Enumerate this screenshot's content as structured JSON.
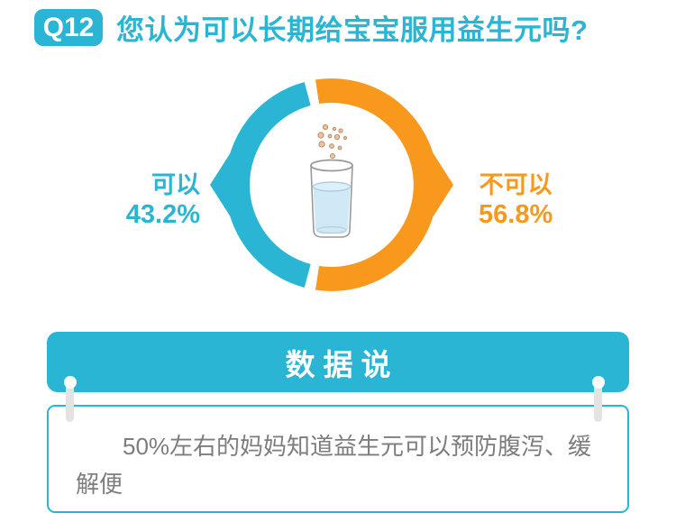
{
  "header": {
    "badge_label": "Q12",
    "question": "您认为可以长期给宝宝服用益生元吗?"
  },
  "chart_data": {
    "type": "pie",
    "subtype": "split-donut-with-arrow-points",
    "title": "您认为可以长期给宝宝服用益生元吗?",
    "labels": [
      "可以",
      "不可以"
    ],
    "values": [
      43.2,
      56.8
    ],
    "value_labels": [
      "43.2%",
      "56.8%"
    ],
    "unit": "%",
    "colors": [
      "#29b5d3",
      "#f8991e"
    ],
    "gap_degrees": 6,
    "legend_position": "left-and-right-of-ring",
    "center_icon": "glass-of-water-with-falling-granules"
  },
  "banner": {
    "title": "数据说"
  },
  "note": {
    "text": "50%左右的妈妈知道益生元可以预防腹泻、缓解便"
  },
  "colors": {
    "primary_cyan": "#29b5d3",
    "accent_orange": "#f8991e",
    "note_text_gray": "#7d7d7d",
    "pin_gray": "#e3e3e3",
    "background": "#ffffff"
  }
}
